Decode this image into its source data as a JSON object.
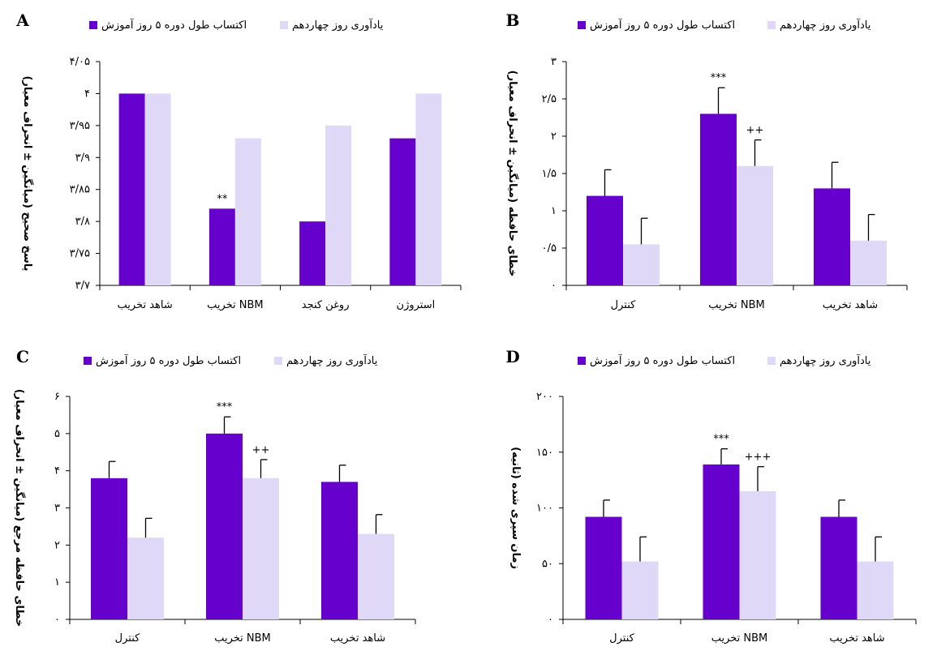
{
  "legend": {
    "acq_label": "اکتساب طول دوره ۵ روز آموزش",
    "rec_label": "یادآوری روز چهاردهم"
  },
  "colors": {
    "acq": "#6600cc",
    "rec": "#dfd9f7"
  },
  "chart_data": [
    {
      "panel": "A",
      "type": "bar",
      "ylabel": "پاسخ صحیح (میانگین ± انحراف معیار)",
      "ylim": [
        3.7,
        4.05
      ],
      "yticks": [
        3.7,
        3.75,
        3.8,
        3.85,
        3.9,
        3.95,
        4.0,
        4.05
      ],
      "ytick_labels": [
        "۳/۷",
        "۳/۷۵",
        "۳/۸",
        "۳/۸۵",
        "۳/۹",
        "۳/۹۵",
        "۴",
        "۴/۰۵"
      ],
      "categories": [
        "شاهد تخریب",
        "تخریب NBM",
        "روغن کنجد",
        "استروژن"
      ],
      "series": [
        {
          "name": "اکتساب طول دوره ۵ روز آموزش",
          "values": [
            4.0,
            3.82,
            3.8,
            3.93
          ],
          "errors": [
            0,
            0,
            0,
            0
          ],
          "sig": [
            "",
            "**",
            "",
            ""
          ]
        },
        {
          "name": "یادآوری روز چهاردهم",
          "values": [
            4.0,
            3.93,
            3.95,
            4.0
          ],
          "errors": [
            0,
            0,
            0,
            0
          ],
          "sig": [
            "",
            "",
            "",
            ""
          ]
        }
      ]
    },
    {
      "panel": "B",
      "type": "bar",
      "ylabel": "خطای حافظه (میانگین ± انحراف معیار)",
      "ylim": [
        0,
        3
      ],
      "yticks": [
        0,
        0.5,
        1,
        1.5,
        2,
        2.5,
        3
      ],
      "ytick_labels": [
        "۰",
        "۰/۵",
        "۱",
        "۱/۵",
        "۲",
        "۲/۵",
        "۳"
      ],
      "categories": [
        "کنترل",
        "تخریب NBM",
        "شاهد تخریب"
      ],
      "series": [
        {
          "name": "اکتساب طول دوره ۵ روز آموزش",
          "values": [
            1.2,
            2.3,
            1.3
          ],
          "errors": [
            0.35,
            0.35,
            0.35
          ],
          "sig": [
            "",
            "***",
            ""
          ]
        },
        {
          "name": "یادآوری روز چهاردهم",
          "values": [
            0.55,
            1.6,
            0.6
          ],
          "errors": [
            0.35,
            0.35,
            0.35
          ],
          "sig": [
            "",
            "++",
            ""
          ]
        }
      ]
    },
    {
      "panel": "C",
      "type": "bar",
      "ylabel": "خطای حافظه مرجع (میانگین ± انحراف معیار)",
      "ylim": [
        0,
        6
      ],
      "yticks": [
        0,
        1,
        2,
        3,
        4,
        5,
        6
      ],
      "ytick_labels": [
        "۰",
        "۱",
        "۲",
        "۳",
        "۴",
        "۵",
        "۶"
      ],
      "categories": [
        "کنترل",
        "تخریب NBM",
        "شاهد تخریب"
      ],
      "series": [
        {
          "name": "اکتساب طول دوره ۵ روز آموزش",
          "values": [
            3.8,
            5.0,
            3.7
          ],
          "errors": [
            0.45,
            0.45,
            0.45
          ],
          "sig": [
            "",
            "***",
            ""
          ]
        },
        {
          "name": "یادآوری روز چهاردهم",
          "values": [
            2.2,
            3.8,
            2.3
          ],
          "errors": [
            0.52,
            0.5,
            0.52
          ],
          "sig": [
            "",
            "++",
            ""
          ]
        }
      ]
    },
    {
      "panel": "D",
      "type": "bar",
      "ylabel": "زمان سپری شده (ثانیه)",
      "ylim": [
        0,
        200
      ],
      "yticks": [
        0,
        50,
        100,
        150,
        200
      ],
      "ytick_labels": [
        "۰",
        "۵۰",
        "۱۰۰",
        "۱۵۰",
        "۲۰۰"
      ],
      "categories": [
        "کنترل",
        "تخریب NBM",
        "شاهد تخریب"
      ],
      "series": [
        {
          "name": "اکتساب طول دوره ۵ روز آموزش",
          "values": [
            92,
            139,
            92
          ],
          "errors": [
            15,
            14,
            15
          ],
          "sig": [
            "",
            "***",
            ""
          ]
        },
        {
          "name": "یادآوری روز چهاردهم",
          "values": [
            52,
            115,
            52
          ],
          "errors": [
            22,
            22,
            22
          ],
          "sig": [
            "",
            "+++",
            ""
          ]
        }
      ]
    }
  ]
}
